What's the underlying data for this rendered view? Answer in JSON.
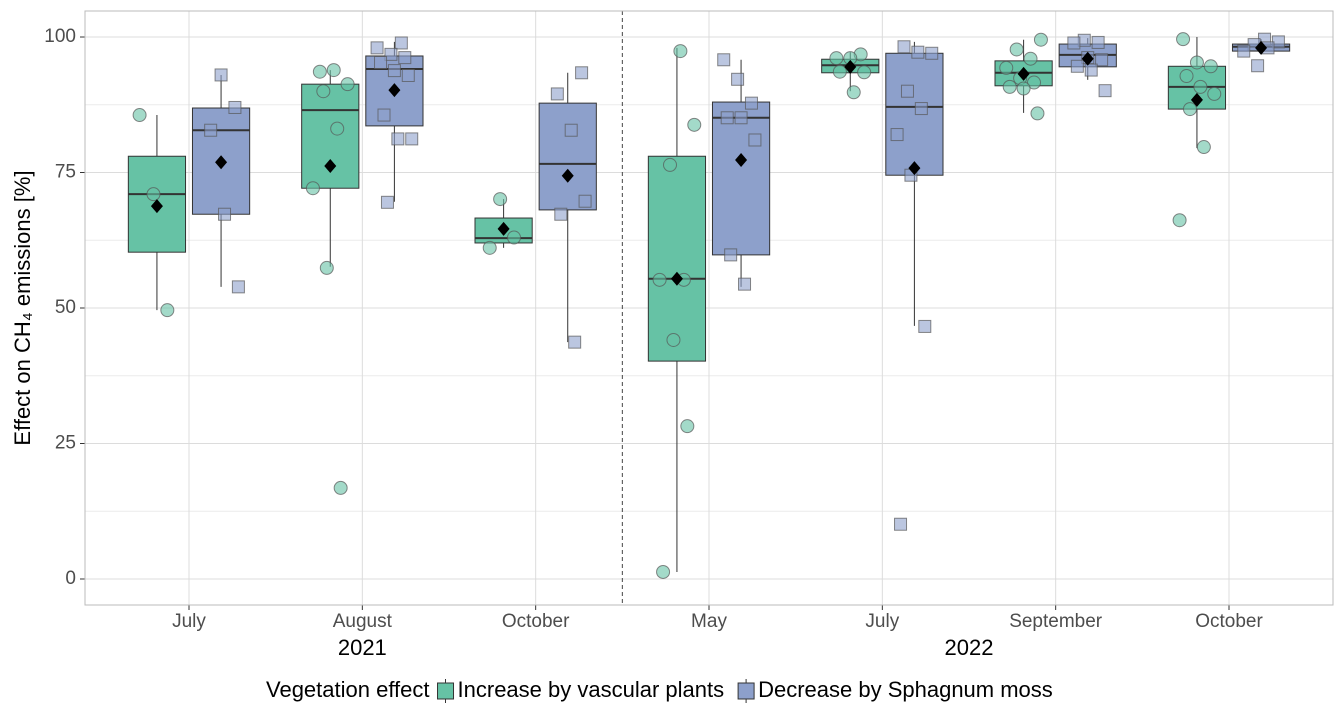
{
  "chart_data": {
    "type": "box",
    "ylabel": "Effect on CH₄ emissions [%]",
    "ylim": [
      -4.8,
      104.8
    ],
    "yticks": [
      0,
      25,
      50,
      75,
      100
    ],
    "yminor": [
      12.5,
      37.5,
      62.5,
      87.5
    ],
    "grid": true,
    "groups": [
      {
        "label": "2021",
        "categories": [
          "July",
          "August",
          "October"
        ]
      },
      {
        "label": "2022",
        "categories": [
          "May",
          "July",
          "September",
          "October"
        ]
      }
    ],
    "legend_title": "Vegetation effect",
    "legend_position": "bottom",
    "series": [
      {
        "name": "Increase by vascular plants",
        "color": "#66c2a5",
        "marker": "circle",
        "boxes": [
          {
            "low": 49.6,
            "q1": 60.3,
            "median": 71.0,
            "q3": 78.0,
            "high": 85.6,
            "mean": 68.8,
            "points": [
              85.6,
              71.0,
              49.6
            ]
          },
          {
            "low": 57.6,
            "q1": 72.1,
            "median": 86.5,
            "q3": 91.3,
            "high": 93.9,
            "mean": 76.2,
            "points": [
              93.6,
              93.9,
              91.3,
              90.0,
              83.1,
              72.1,
              57.4,
              16.8
            ]
          },
          {
            "low": 61.1,
            "q1": 62.0,
            "median": 62.9,
            "q3": 66.6,
            "high": 70.1,
            "mean": 64.6,
            "points": [
              70.1,
              63.0,
              61.1
            ]
          },
          {
            "low": 1.3,
            "q1": 40.2,
            "median": 55.4,
            "q3": 78.0,
            "high": 98.0,
            "mean": 55.4,
            "points": [
              97.4,
              83.8,
              76.4,
              55.2,
              55.2,
              44.1,
              28.2,
              1.3
            ]
          },
          {
            "low": 90.0,
            "q1": 93.4,
            "median": 94.8,
            "q3": 95.9,
            "high": 97.2,
            "mean": 94.5,
            "points": [
              96.8,
              96.1,
              96.1,
              93.5,
              93.6,
              89.8
            ]
          },
          {
            "low": 86.0,
            "q1": 91.0,
            "median": 93.4,
            "q3": 95.6,
            "high": 99.5,
            "mean": 93.2,
            "points": [
              99.5,
              97.7,
              96.0,
              94.3,
              92.4,
              91.6,
              90.8,
              90.5,
              85.9
            ]
          },
          {
            "low": 79.5,
            "q1": 86.7,
            "median": 90.8,
            "q3": 94.6,
            "high": 100,
            "mean": 88.4,
            "points": [
              99.6,
              95.3,
              94.6,
              92.8,
              90.8,
              89.5,
              86.7,
              79.7,
              66.2
            ]
          }
        ]
      },
      {
        "name": "Decrease by Sphagnum moss",
        "color": "#8da0cb",
        "marker": "square",
        "boxes": [
          {
            "low": 53.9,
            "q1": 67.3,
            "median": 82.8,
            "q3": 86.9,
            "high": 93.0,
            "mean": 76.9,
            "points": [
              93.0,
              87.0,
              82.8,
              67.3,
              53.9
            ]
          },
          {
            "low": 69.6,
            "q1": 83.6,
            "median": 94.1,
            "q3": 96.5,
            "high": 99.1,
            "mean": 90.2,
            "points": [
              98.9,
              98.0,
              96.8,
              96.2,
              95.3,
              93.8,
              92.9,
              85.6,
              81.2,
              81.2,
              69.5
            ]
          },
          {
            "low": 43.7,
            "q1": 68.1,
            "median": 76.6,
            "q3": 87.8,
            "high": 93.4,
            "mean": 74.4,
            "points": [
              93.4,
              89.5,
              82.8,
              69.7,
              67.3,
              43.7
            ]
          },
          {
            "low": 53.9,
            "q1": 59.8,
            "median": 85.1,
            "q3": 88.0,
            "high": 95.8,
            "mean": 77.3,
            "points": [
              95.8,
              92.2,
              87.8,
              85.1,
              85.1,
              81.0,
              59.8,
              54.4
            ]
          },
          {
            "low": 46.7,
            "q1": 74.5,
            "median": 87.1,
            "q3": 97.0,
            "high": 99.1,
            "mean": 75.8,
            "points": [
              98.2,
              97.2,
              97.0,
              90.0,
              86.8,
              82.0,
              74.5,
              46.6,
              10.1
            ]
          },
          {
            "low": 92.1,
            "q1": 94.5,
            "median": 96.7,
            "q3": 98.7,
            "high": 99.8,
            "mean": 96.0,
            "points": [
              99.4,
              99.0,
              98.9,
              96.2,
              95.8,
              94.6,
              93.9,
              90.1
            ]
          },
          {
            "low": 96.9,
            "q1": 97.4,
            "median": 98.2,
            "q3": 98.7,
            "high": 99.6,
            "mean": 98.0,
            "points": [
              99.6,
              99.1,
              98.6,
              98.0,
              97.4,
              94.7
            ]
          }
        ]
      }
    ]
  }
}
